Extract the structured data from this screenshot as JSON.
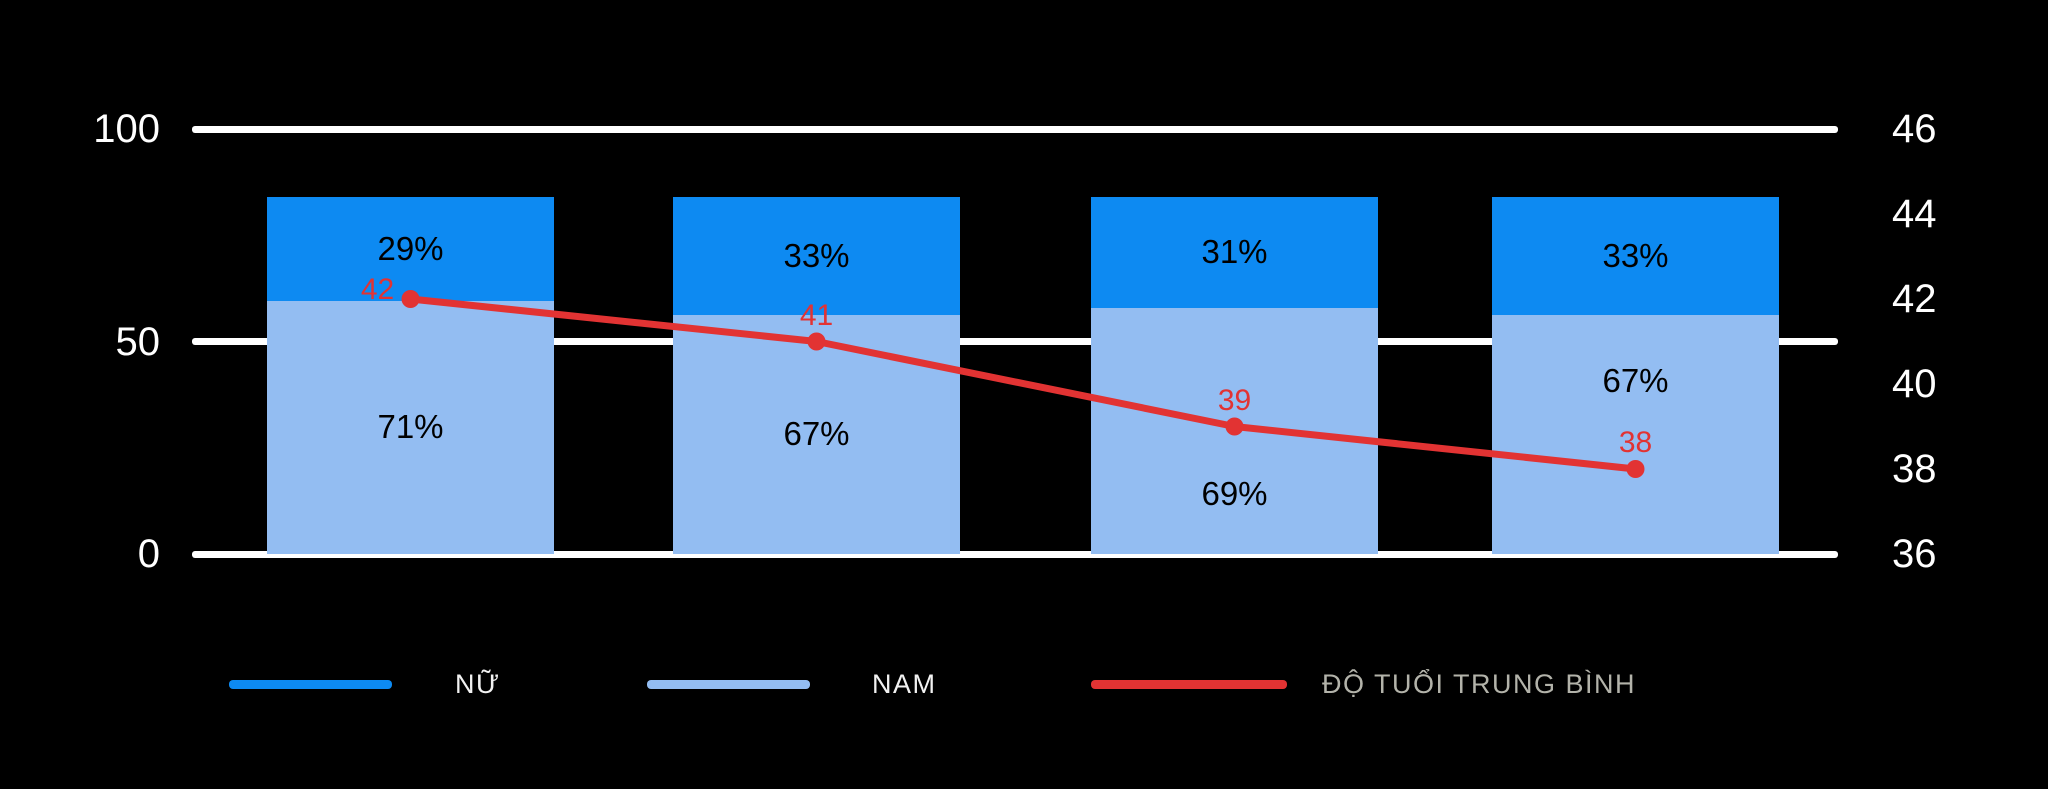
{
  "colors": {
    "background": "#000000",
    "female_bar": "#0d8af2",
    "male_bar": "#93bdf2",
    "line": "#e23333",
    "grid": "#ffffff",
    "axis_text": "#ffffff",
    "bar_label_text": "#000000"
  },
  "chart_data": {
    "type": "bar",
    "subtype": "stacked-100-percent-bars-with-line-overlay",
    "categories": [
      "",
      "",
      "",
      ""
    ],
    "series": [
      {
        "name": "NAM",
        "type": "bar",
        "stack_position": "bottom",
        "values": [
          71,
          67,
          69,
          67
        ],
        "labels": [
          "71%",
          "67%",
          "69%",
          "67%"
        ],
        "color": "#93bdf2"
      },
      {
        "name": "NỮ",
        "type": "bar",
        "stack_position": "top",
        "values": [
          29,
          33,
          31,
          33
        ],
        "labels": [
          "29%",
          "33%",
          "31%",
          "33%"
        ],
        "color": "#0d8af2"
      },
      {
        "name": "ĐỘ TUỔI TRUNG BÌNH",
        "type": "line",
        "axis": "right",
        "values": [
          42,
          41,
          39,
          38
        ],
        "labels": [
          "42",
          "41",
          "39",
          "38"
        ],
        "color": "#e23333"
      }
    ],
    "left_axis": {
      "ticks": [
        100,
        50,
        0
      ],
      "min": 0,
      "max": 100
    },
    "right_axis": {
      "ticks": [
        46,
        44,
        42,
        40,
        38,
        36
      ],
      "min": 36,
      "max": 46
    },
    "grid": "horizontal-lines-at-left-ticks",
    "legend_position": "bottom"
  },
  "legend": {
    "items": [
      {
        "label": "NỮ",
        "color": "#0d8af2",
        "label_color": "#f2f2f2",
        "shape": "line"
      },
      {
        "label": "NAM",
        "color": "#93bdf2",
        "label_color": "#f2f2f2",
        "shape": "line"
      },
      {
        "label": "ĐỘ TUỔI TRUNG BÌNH",
        "color": "#e23333",
        "label_color": "#b3b3aa",
        "shape": "line"
      }
    ]
  }
}
